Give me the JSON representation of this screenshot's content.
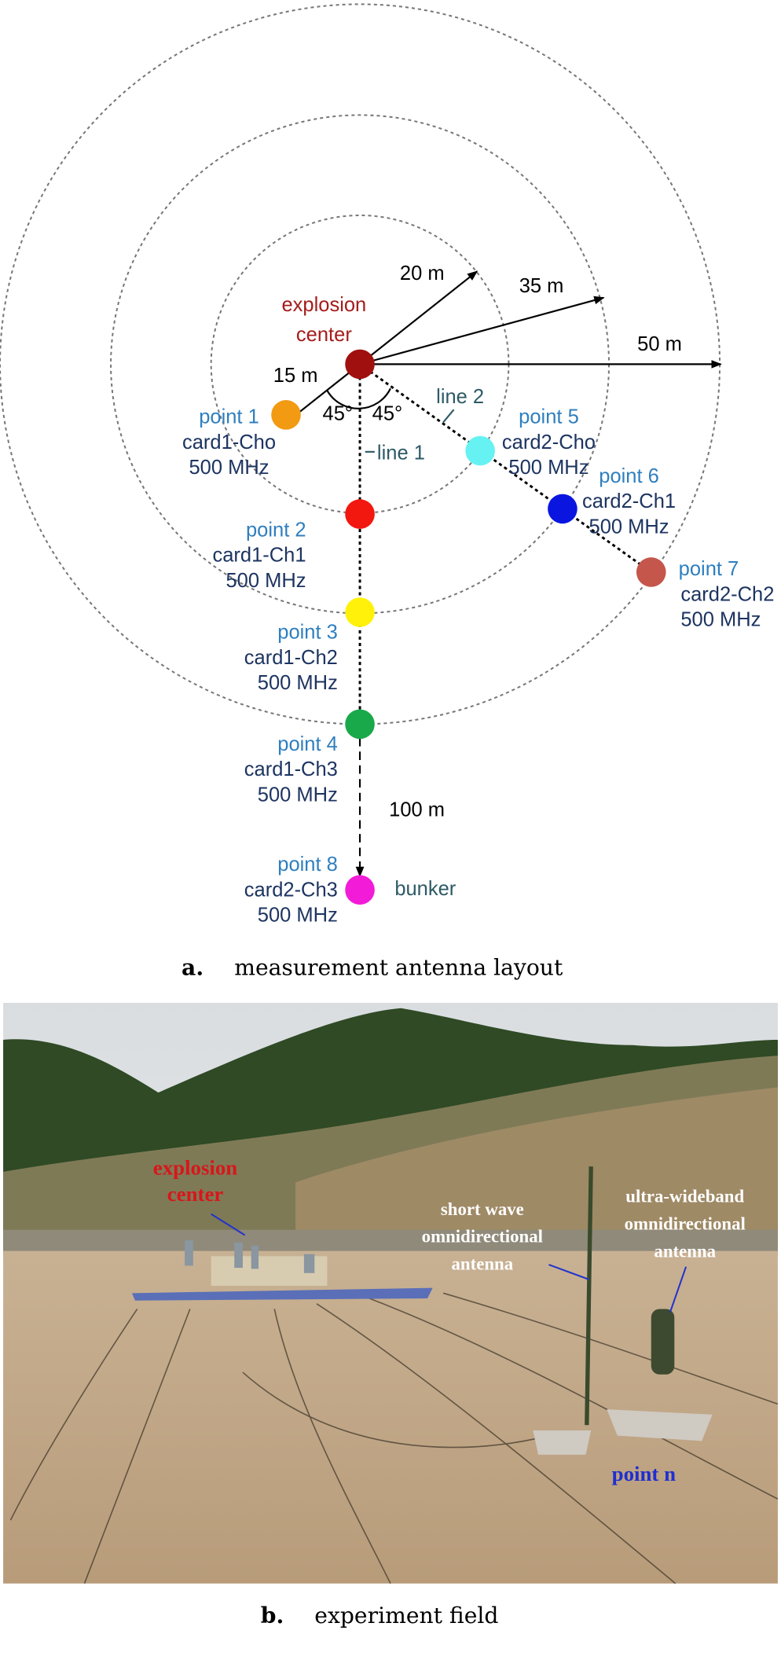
{
  "diagram": {
    "center_label": [
      "explosion",
      "center"
    ],
    "radius_labels": [
      "15 m",
      "20 m",
      "35 m",
      "50 m"
    ],
    "angles": [
      "45°",
      "45°"
    ],
    "lines": [
      "line 1",
      "line 2"
    ],
    "distance_label": "100 m",
    "bunker_label": "bunker",
    "points": [
      {
        "label": "point 1",
        "card": "card1-Cho",
        "freq": "500 MHz"
      },
      {
        "label": "point 2",
        "card": "card1-Ch1",
        "freq": "500 MHz"
      },
      {
        "label": "point 3",
        "card": "card1-Ch2",
        "freq": "500 MHz"
      },
      {
        "label": "point 4",
        "card": "card1-Ch3",
        "freq": "500 MHz"
      },
      {
        "label": "point 5",
        "card": "card2-Cho",
        "freq": "500 MHz"
      },
      {
        "label": "point 6",
        "card": "card2-Ch1",
        "freq": "500 MHz"
      },
      {
        "label": "point 7",
        "card": "card2-Ch2",
        "freq": "500 MHz"
      },
      {
        "label": "point 8",
        "card": "card2-Ch3",
        "freq": "500 MHz"
      }
    ]
  },
  "captions": [
    {
      "letter": "a.",
      "text": "measurement antenna layout"
    },
    {
      "letter": "b.",
      "text": "experiment field"
    }
  ],
  "photo": {
    "labels": [
      "explosion",
      "center",
      "short wave",
      "omnidirectional",
      "antenna",
      "ultra-wideband",
      "omnidirectional",
      "antenna",
      "point n"
    ]
  }
}
